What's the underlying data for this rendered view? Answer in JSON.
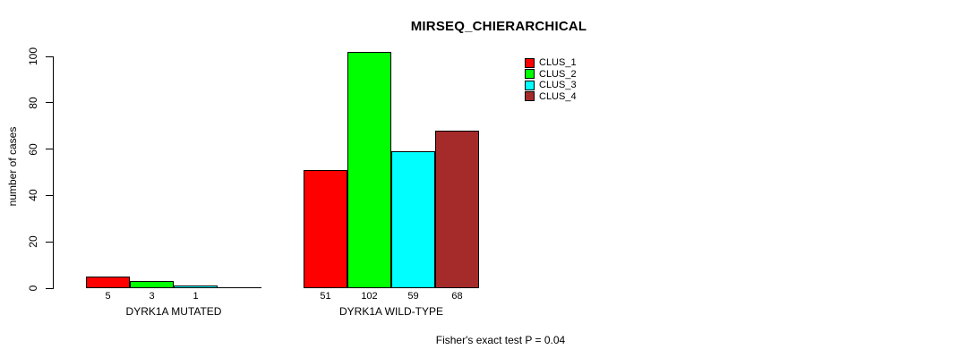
{
  "chart_data": {
    "type": "bar",
    "title": "MIRSEQ_CHIERARCHICAL",
    "xlabel": "",
    "ylabel": "number of cases",
    "ylim": [
      0,
      100
    ],
    "yticks": [
      0,
      20,
      40,
      60,
      80,
      100
    ],
    "grid": false,
    "legend_position": "top-right",
    "background_color": "#ffffff",
    "axis_color": "#000000",
    "groups": [
      "DYRK1A MUTATED",
      "DYRK1A WILD-TYPE"
    ],
    "series": [
      {
        "name": "CLUS_1",
        "color": "#ff0000",
        "values": [
          5,
          51
        ]
      },
      {
        "name": "CLUS_2",
        "color": "#00ff00",
        "values": [
          3,
          102
        ]
      },
      {
        "name": "CLUS_3",
        "color": "#00ffff",
        "values": [
          1,
          59
        ]
      },
      {
        "name": "CLUS_4",
        "color": "#a52a2a",
        "values": [
          0,
          68
        ]
      }
    ],
    "bar_labels": [
      [
        "5",
        "3",
        "1",
        ""
      ],
      [
        "51",
        "102",
        "59",
        "68"
      ]
    ],
    "annotation": "Fisher's exact test P = 0.04"
  }
}
